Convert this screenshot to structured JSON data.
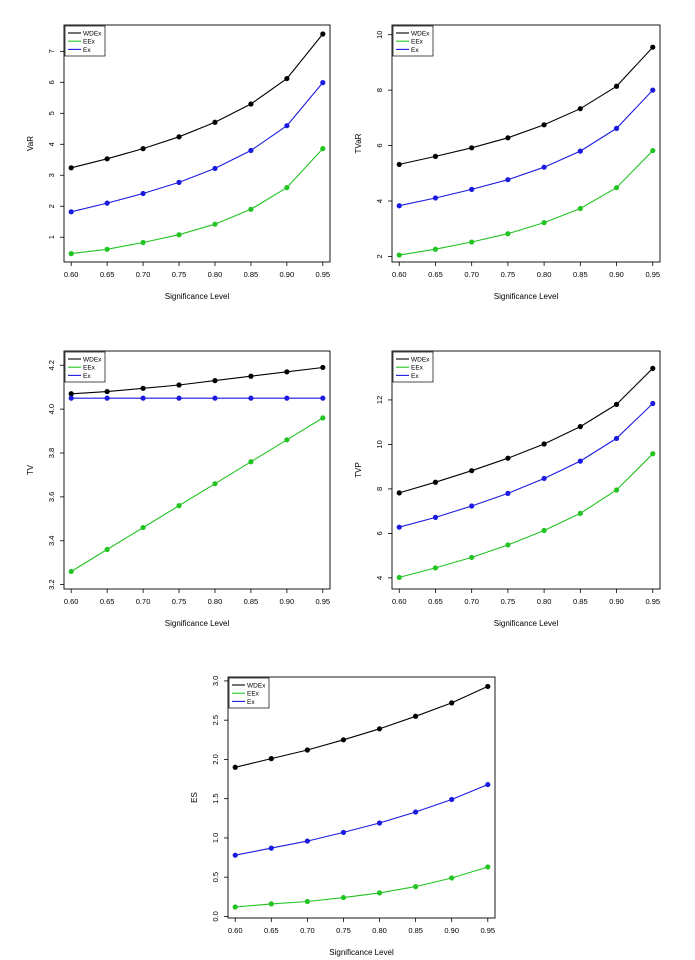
{
  "chart_data": [
    {
      "type": "line",
      "title": "",
      "xlabel": "Significance Level",
      "ylabel": "VaR",
      "x": [
        0.6,
        0.65,
        0.7,
        0.75,
        0.8,
        0.85,
        0.9,
        0.95
      ],
      "x_tick_labels": [
        "0.60",
        "0.65",
        "0.70",
        "0.75",
        "0.80",
        "0.85",
        "0.90",
        "0.95"
      ],
      "xlim": [
        0.59,
        0.96
      ],
      "ylim": [
        0.2,
        7.85
      ],
      "y_ticks": [
        1,
        2,
        3,
        4,
        5,
        6,
        7
      ],
      "y_tick_labels": [
        "1",
        "2",
        "3",
        "4",
        "5",
        "6",
        "7"
      ],
      "legend_position": "top-left",
      "series": [
        {
          "name": "WDEx",
          "color": "#000000",
          "values": [
            3.24,
            3.53,
            3.86,
            4.24,
            4.71,
            5.3,
            6.12,
            7.56
          ]
        },
        {
          "name": "EEx",
          "color": "#22c422",
          "values": [
            0.47,
            0.61,
            0.83,
            1.08,
            1.42,
            1.9,
            2.6,
            3.86
          ]
        },
        {
          "name": "Ex",
          "color": "#1a1ae0",
          "values": [
            1.82,
            2.1,
            2.41,
            2.77,
            3.22,
            3.8,
            4.6,
            5.99
          ]
        }
      ]
    },
    {
      "type": "line",
      "title": "",
      "xlabel": "Significance Level",
      "ylabel": "TVaR",
      "x": [
        0.6,
        0.65,
        0.7,
        0.75,
        0.8,
        0.85,
        0.9,
        0.95
      ],
      "x_tick_labels": [
        "0.60",
        "0.65",
        "0.70",
        "0.75",
        "0.80",
        "0.85",
        "0.90",
        "0.95"
      ],
      "xlim": [
        0.59,
        0.96
      ],
      "ylim": [
        1.8,
        10.35
      ],
      "y_ticks": [
        2,
        4,
        6,
        8,
        10
      ],
      "y_tick_labels": [
        "2",
        "4",
        "6",
        "8",
        "10"
      ],
      "legend_position": "top-left",
      "series": [
        {
          "name": "WDEx",
          "color": "#000000",
          "values": [
            5.32,
            5.61,
            5.92,
            6.28,
            6.75,
            7.33,
            8.14,
            9.55
          ]
        },
        {
          "name": "EEx",
          "color": "#22c422",
          "values": [
            2.05,
            2.26,
            2.52,
            2.82,
            3.22,
            3.73,
            4.48,
            5.82
          ]
        },
        {
          "name": "Ex",
          "color": "#1a1ae0",
          "values": [
            3.83,
            4.11,
            4.42,
            4.77,
            5.22,
            5.8,
            6.62,
            8.0
          ]
        }
      ]
    },
    {
      "type": "line",
      "title": "",
      "xlabel": "Significance Level",
      "ylabel": "TV",
      "x": [
        0.6,
        0.65,
        0.7,
        0.75,
        0.8,
        0.85,
        0.9,
        0.95
      ],
      "x_tick_labels": [
        "0.60",
        "0.65",
        "0.70",
        "0.75",
        "0.80",
        "0.85",
        "0.90",
        "0.95"
      ],
      "xlim": [
        0.59,
        0.96
      ],
      "ylim": [
        3.18,
        4.265
      ],
      "y_ticks": [
        3.2,
        3.4,
        3.6,
        3.8,
        4.0,
        4.2
      ],
      "y_tick_labels": [
        "3.2",
        "3.4",
        "3.6",
        "3.8",
        "4.0",
        "4.2"
      ],
      "legend_position": "top-left",
      "series": [
        {
          "name": "WDEx",
          "color": "#000000",
          "values": [
            4.07,
            4.08,
            4.095,
            4.11,
            4.13,
            4.15,
            4.17,
            4.19
          ]
        },
        {
          "name": "EEx",
          "color": "#22c422",
          "values": [
            3.26,
            3.36,
            3.46,
            3.56,
            3.66,
            3.76,
            3.86,
            3.96
          ]
        },
        {
          "name": "Ex",
          "color": "#1a1ae0",
          "values": [
            4.05,
            4.05,
            4.05,
            4.05,
            4.05,
            4.05,
            4.05,
            4.05
          ]
        }
      ]
    },
    {
      "type": "line",
      "title": "",
      "xlabel": "Significance Level",
      "ylabel": "TVP",
      "x": [
        0.6,
        0.65,
        0.7,
        0.75,
        0.8,
        0.85,
        0.9,
        0.95
      ],
      "x_tick_labels": [
        "0.60",
        "0.65",
        "0.70",
        "0.75",
        "0.80",
        "0.85",
        "0.90",
        "0.95"
      ],
      "xlim": [
        0.59,
        0.96
      ],
      "ylim": [
        3.5,
        14.2
      ],
      "y_ticks": [
        4,
        6,
        8,
        10,
        12
      ],
      "y_tick_labels": [
        "4",
        "6",
        "8",
        "10",
        "12"
      ],
      "legend_position": "top-left",
      "series": [
        {
          "name": "WDEx",
          "color": "#000000",
          "values": [
            7.82,
            8.3,
            8.82,
            9.38,
            10.02,
            10.8,
            11.8,
            13.42
          ]
        },
        {
          "name": "EEx",
          "color": "#22c422",
          "values": [
            4.02,
            4.45,
            4.92,
            5.48,
            6.13,
            6.9,
            7.95,
            9.58
          ]
        },
        {
          "name": "Ex",
          "color": "#1a1ae0",
          "values": [
            6.28,
            6.72,
            7.23,
            7.8,
            8.47,
            9.25,
            10.27,
            11.84
          ]
        }
      ]
    },
    {
      "type": "line",
      "title": "",
      "xlabel": "Significance Level",
      "ylabel": "ES",
      "x": [
        0.6,
        0.65,
        0.7,
        0.75,
        0.8,
        0.85,
        0.9,
        0.95
      ],
      "x_tick_labels": [
        "0.60",
        "0.65",
        "0.70",
        "0.75",
        "0.80",
        "0.85",
        "0.90",
        "0.95"
      ],
      "xlim": [
        0.59,
        0.96
      ],
      "ylim": [
        -0.02,
        3.05
      ],
      "y_ticks": [
        0.0,
        0.5,
        1.0,
        1.5,
        2.0,
        2.5,
        3.0
      ],
      "y_tick_labels": [
        "0.0",
        "0.5",
        "1.0",
        "1.5",
        "2.0",
        "2.5",
        "3.0"
      ],
      "legend_position": "top-left",
      "legend_labels": [
        "WDEx",
        "EEx",
        "Ex"
      ],
      "series": [
        {
          "name": "WDEx",
          "color": "#000000",
          "values": [
            1.9,
            2.01,
            2.12,
            2.25,
            2.39,
            2.55,
            2.72,
            2.93
          ]
        },
        {
          "name": "EEx",
          "color": "#22c422",
          "values": [
            0.12,
            0.16,
            0.19,
            0.24,
            0.3,
            0.38,
            0.49,
            0.63
          ]
        },
        {
          "name": "Ex",
          "color": "#1a1ae0",
          "values": [
            0.78,
            0.87,
            0.96,
            1.07,
            1.19,
            1.33,
            1.49,
            1.68
          ]
        }
      ]
    }
  ]
}
